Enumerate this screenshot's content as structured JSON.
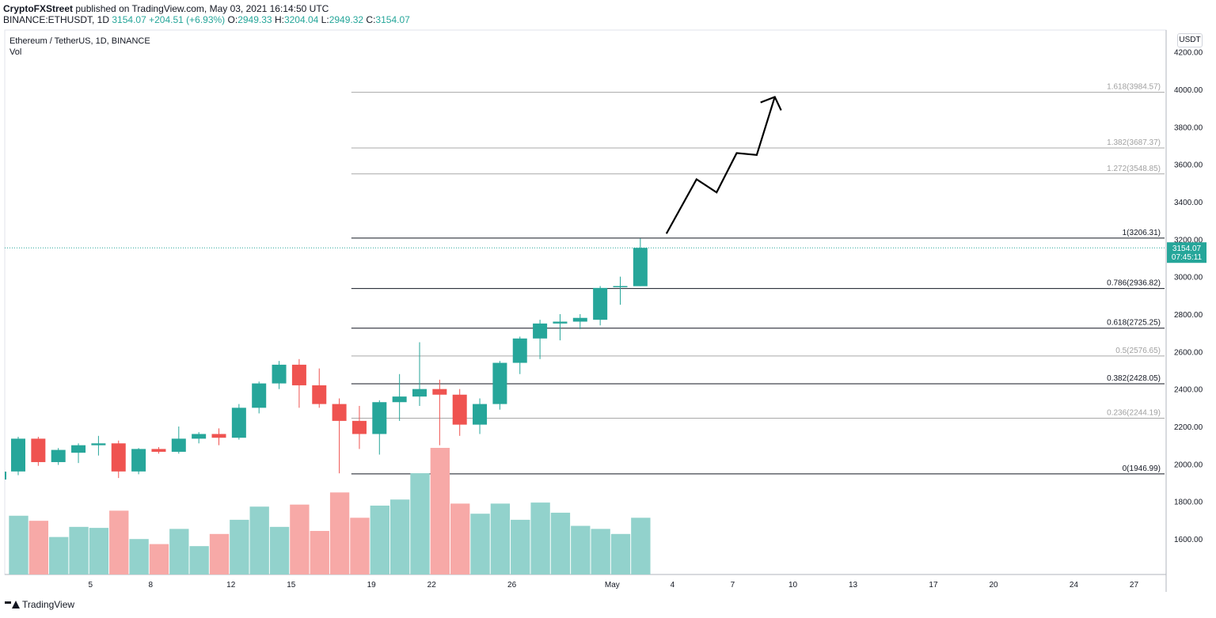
{
  "header": {
    "author": "CryptoFXStreet",
    "published_text": "published on TradingView.com, May 03, 2021 16:14:50 UTC",
    "symbol": "BINANCE:ETHUSDT, 1D",
    "last": "3154.07",
    "change": "+204.51 (+6.93%)",
    "o_label": "O:",
    "o_value": "2949.33",
    "h_label": "H:",
    "h_value": "3204.04",
    "l_label": "L:",
    "l_value": "2949.32",
    "c_label": "C:",
    "c_value": "3154.07"
  },
  "legend": {
    "title": "Ethereum / TetherUS, 1D, BINANCE",
    "vol_label": "Vol"
  },
  "price_scale": {
    "unit": "USDT"
  },
  "last_price_tag": {
    "price": "3154.07",
    "countdown": "07:45:11"
  },
  "footer": {
    "brand": "TradingView"
  },
  "colors": {
    "up": "#26a69a",
    "down": "#ef5350",
    "vol_up": "#92d2cc",
    "vol_down": "#f7a9a7",
    "accent": "#26a69a"
  },
  "chart_data": {
    "type": "candlestick",
    "y_range": [
      1470,
      4250
    ],
    "y_ticks": [
      1600,
      1800,
      2000,
      2200,
      2400,
      2600,
      2800,
      3000,
      3200,
      3400,
      3600,
      3800,
      4000,
      4200
    ],
    "y_tick_labels": [
      "1600.00",
      "1800.00",
      "2000.00",
      "2200.00",
      "2400.00",
      "2600.00",
      "2800.00",
      "3000.00",
      "3200.00",
      "3400.00",
      "3600.00",
      "3800.00",
      "4000.00",
      "4200.00"
    ],
    "x_ticks": [
      {
        "label": "5",
        "idx": 3.6
      },
      {
        "label": "8",
        "idx": 6.6
      },
      {
        "label": "12",
        "idx": 10.6
      },
      {
        "label": "15",
        "idx": 13.6
      },
      {
        "label": "19",
        "idx": 17.6
      },
      {
        "label": "22",
        "idx": 20.6
      },
      {
        "label": "26",
        "idx": 24.6
      },
      {
        "label": "May",
        "idx": 29.6
      },
      {
        "label": "4",
        "idx": 32.6
      },
      {
        "label": "7",
        "idx": 35.6
      },
      {
        "label": "10",
        "idx": 38.6
      },
      {
        "label": "13",
        "idx": 41.6
      },
      {
        "label": "17",
        "idx": 45.6
      },
      {
        "label": "20",
        "idx": 48.6
      },
      {
        "label": "24",
        "idx": 52.6
      },
      {
        "label": "27",
        "idx": 55.6
      }
    ],
    "candles": [
      {
        "o": 1960,
        "h": 2145,
        "l": 1940,
        "c": 2135,
        "v": 0.58
      },
      {
        "o": 2135,
        "h": 2145,
        "l": 1990,
        "c": 2010,
        "v": 0.53
      },
      {
        "o": 2010,
        "h": 2085,
        "l": 1995,
        "c": 2075,
        "v": 0.37
      },
      {
        "o": 2060,
        "h": 2110,
        "l": 2005,
        "c": 2100,
        "v": 0.47
      },
      {
        "o": 2100,
        "h": 2150,
        "l": 2045,
        "c": 2110,
        "v": 0.46
      },
      {
        "o": 2110,
        "h": 2125,
        "l": 1925,
        "c": 1960,
        "v": 0.63
      },
      {
        "o": 1960,
        "h": 2085,
        "l": 1945,
        "c": 2080,
        "v": 0.35
      },
      {
        "o": 2080,
        "h": 2090,
        "l": 2055,
        "c": 2065,
        "v": 0.3
      },
      {
        "o": 2065,
        "h": 2200,
        "l": 2055,
        "c": 2135,
        "v": 0.45
      },
      {
        "o": 2135,
        "h": 2170,
        "l": 2110,
        "c": 2160,
        "v": 0.28
      },
      {
        "o": 2160,
        "h": 2190,
        "l": 2100,
        "c": 2140,
        "v": 0.4
      },
      {
        "o": 2140,
        "h": 2320,
        "l": 2130,
        "c": 2300,
        "v": 0.54
      },
      {
        "o": 2300,
        "h": 2440,
        "l": 2270,
        "c": 2430,
        "v": 0.67
      },
      {
        "o": 2430,
        "h": 2550,
        "l": 2400,
        "c": 2530,
        "v": 0.47
      },
      {
        "o": 2530,
        "h": 2560,
        "l": 2300,
        "c": 2420,
        "v": 0.69
      },
      {
        "o": 2420,
        "h": 2510,
        "l": 2300,
        "c": 2320,
        "v": 0.43
      },
      {
        "o": 2320,
        "h": 2350,
        "l": 1950,
        "c": 2230,
        "v": 0.81
      },
      {
        "o": 2230,
        "h": 2310,
        "l": 2080,
        "c": 2160,
        "v": 0.56
      },
      {
        "o": 2160,
        "h": 2340,
        "l": 2050,
        "c": 2330,
        "v": 0.68
      },
      {
        "o": 2330,
        "h": 2480,
        "l": 2230,
        "c": 2360,
        "v": 0.74
      },
      {
        "o": 2360,
        "h": 2650,
        "l": 2310,
        "c": 2400,
        "v": 1.0
      },
      {
        "o": 2400,
        "h": 2450,
        "l": 2100,
        "c": 2370,
        "v": 1.25
      },
      {
        "o": 2370,
        "h": 2400,
        "l": 2150,
        "c": 2210,
        "v": 0.7
      },
      {
        "o": 2210,
        "h": 2350,
        "l": 2160,
        "c": 2320,
        "v": 0.6
      },
      {
        "o": 2320,
        "h": 2550,
        "l": 2290,
        "c": 2540,
        "v": 0.7
      },
      {
        "o": 2540,
        "h": 2680,
        "l": 2480,
        "c": 2670,
        "v": 0.54
      },
      {
        "o": 2670,
        "h": 2770,
        "l": 2560,
        "c": 2750,
        "v": 0.71
      },
      {
        "o": 2750,
        "h": 2800,
        "l": 2660,
        "c": 2760,
        "v": 0.61
      },
      {
        "o": 2760,
        "h": 2800,
        "l": 2720,
        "c": 2780,
        "v": 0.48
      },
      {
        "o": 2770,
        "h": 2950,
        "l": 2740,
        "c": 2940,
        "v": 0.45
      },
      {
        "o": 2945,
        "h": 3000,
        "l": 2850,
        "c": 2950,
        "v": 0.4
      },
      {
        "o": 2949.33,
        "h": 3204.04,
        "l": 2949.32,
        "c": 3154.07,
        "v": 0.56
      }
    ],
    "fib_levels": [
      {
        "ratio": "0",
        "price": 1946.99,
        "label": "0(1946.99)",
        "style": "dark"
      },
      {
        "ratio": "0.236",
        "price": 2244.19,
        "label": "0.236(2244.19)",
        "style": "light"
      },
      {
        "ratio": "0.382",
        "price": 2428.05,
        "label": "0.382(2428.05)",
        "style": "dark"
      },
      {
        "ratio": "0.5",
        "price": 2576.65,
        "label": "0.5(2576.65)",
        "style": "light"
      },
      {
        "ratio": "0.618",
        "price": 2725.25,
        "label": "0.618(2725.25)",
        "style": "dark"
      },
      {
        "ratio": "0.786",
        "price": 2936.82,
        "label": "0.786(2936.82)",
        "style": "dark"
      },
      {
        "ratio": "1",
        "price": 3206.31,
        "label": "1(3206.31)",
        "style": "dark"
      },
      {
        "ratio": "1.272",
        "price": 3548.85,
        "label": "1.272(3548.85)",
        "style": "light"
      },
      {
        "ratio": "1.382",
        "price": 3687.37,
        "label": "1.382(3687.37)",
        "style": "light"
      },
      {
        "ratio": "1.618",
        "price": 3984.57,
        "label": "1.618(3984.57)",
        "style": "light"
      }
    ],
    "fib_start_idx": 16.6,
    "projection_path": [
      {
        "idx": 32.3,
        "price": 3230
      },
      {
        "idx": 33.8,
        "price": 3520
      },
      {
        "idx": 34.8,
        "price": 3450
      },
      {
        "idx": 35.8,
        "price": 3660
      },
      {
        "idx": 36.8,
        "price": 3650
      },
      {
        "idx": 37.7,
        "price": 3960
      }
    ],
    "current_price": 3154.07
  }
}
